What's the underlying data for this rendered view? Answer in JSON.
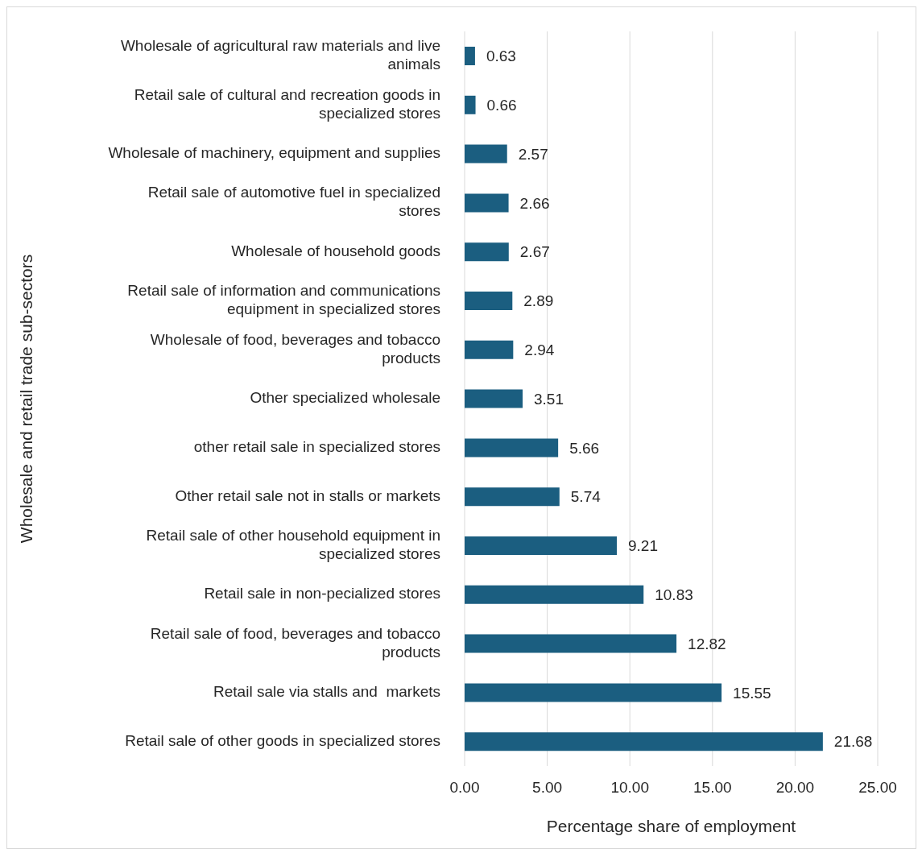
{
  "chart_data": {
    "type": "bar",
    "orientation": "horizontal",
    "xlabel": "Percentage share of employment",
    "ylabel": "Wholesale and retail trade  sub-sectors",
    "categories": [
      "Wholesale of agricultural raw materials and live animals",
      "Retail sale of cultural and recreation goods in specialized stores",
      "Wholesale of machinery, equipment and supplies",
      "Retail sale of automotive fuel in specialized stores",
      "Wholesale of household goods",
      "Retail sale of information and communications equipment in specialized stores",
      "Wholesale of food, beverages and tobacco products",
      "Other specialized wholesale",
      "other retail sale in specialized stores",
      "Other retail sale not in stalls or markets",
      "Retail sale of other household equipment in specialized stores",
      "Retail sale in non-pecialized stores",
      "Retail sale of food, beverages and tobacco products",
      "Retail sale via stalls and  markets",
      "Retail sale of other goods in specialized stores"
    ],
    "values": [
      0.63,
      0.66,
      2.57,
      2.66,
      2.67,
      2.89,
      2.94,
      3.51,
      5.66,
      5.74,
      9.21,
      10.83,
      12.82,
      15.55,
      21.68
    ],
    "color": "#1b5e80",
    "data_labels": true,
    "grid": "x",
    "legend": false,
    "xlim": [
      0,
      25
    ],
    "xticks": [
      {
        "value": 0,
        "label": "0.00"
      },
      {
        "value": 5,
        "label": "5.00"
      },
      {
        "value": 10,
        "label": "10.00"
      },
      {
        "value": 15,
        "label": "15.00"
      },
      {
        "value": 20,
        "label": "20.00"
      },
      {
        "value": 25,
        "label": "25.00"
      }
    ]
  }
}
